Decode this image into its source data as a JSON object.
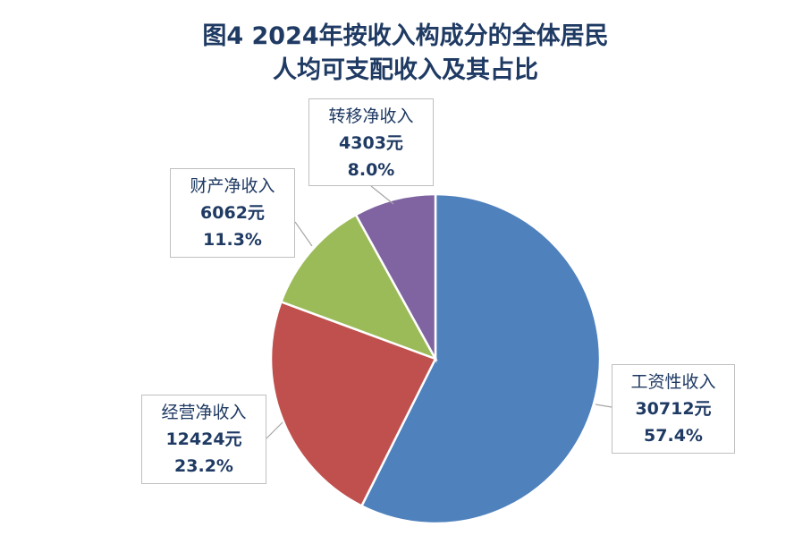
{
  "chart_data": {
    "type": "pie",
    "title_line1": "图4 2024年按收入构成分的全体居民",
    "title_line2": "人均可支配收入及其占比",
    "slices": [
      {
        "name": "工资性收入",
        "value": 30712,
        "value_label": "30712元",
        "percent_label": "57.4%",
        "percent": 57.4,
        "color": "#4f81bd"
      },
      {
        "name": "经营净收入",
        "value": 12424,
        "value_label": "12424元",
        "percent_label": "23.2%",
        "percent": 23.2,
        "color": "#c0504d"
      },
      {
        "name": "财产净收入",
        "value": 6062,
        "value_label": "6062元",
        "percent_label": "11.3%",
        "percent": 11.3,
        "color": "#9bbb59"
      },
      {
        "name": "转移净收入",
        "value": 4303,
        "value_label": "4303元",
        "percent_label": "8.0%",
        "percent": 8.0,
        "color": "#8064a2"
      }
    ]
  }
}
